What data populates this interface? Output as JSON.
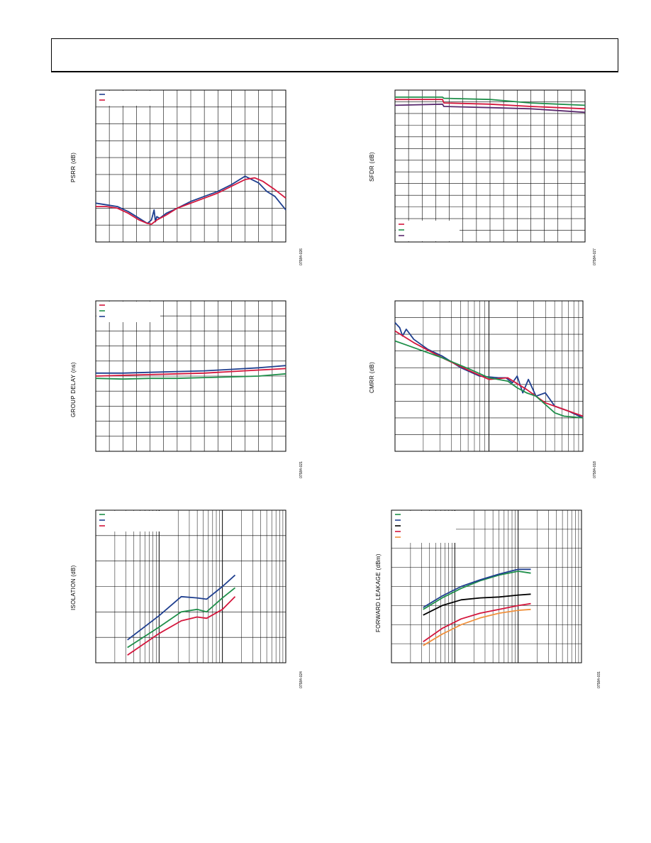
{
  "colors": {
    "blue": "#1f3f8f",
    "red": "#d4163c",
    "green": "#1f8f4a",
    "black": "#000000",
    "orange": "#f0903c",
    "purple": "#5a2a6e",
    "grid": "#000000"
  },
  "charts": {
    "psrr": {
      "ylabel": "PSRR (dB)",
      "fig_id": "07584-026",
      "chart_data": {
        "type": "line",
        "xlabel": "",
        "ylabel": "PSRR (dB)",
        "x_scale": "linear",
        "xlim": [
          0,
          14
        ],
        "ylim": [
          0,
          9
        ],
        "grid": true,
        "legend": {
          "placement": "top-left",
          "entries": 2
        },
        "series": [
          {
            "color": "blue",
            "x": [
              0,
              0.8,
              1.6,
              2.4,
              3.2,
              3.8,
              4.1,
              4.3,
              4.4,
              4.5,
              4.7,
              5.2,
              6.0,
              7.0,
              8.0,
              9.0,
              10.0,
              11.0,
              12.0,
              12.6,
              13.2,
              14.0
            ],
            "y": [
              2.3,
              2.2,
              2.1,
              1.8,
              1.4,
              1.1,
              1.3,
              1.9,
              1.2,
              1.5,
              1.4,
              1.7,
              2.0,
              2.4,
              2.7,
              3.0,
              3.4,
              3.9,
              3.5,
              3.0,
              2.7,
              1.9
            ]
          },
          {
            "color": "red",
            "x": [
              0,
              0.8,
              1.6,
              2.4,
              3.2,
              3.8,
              4.1,
              4.5,
              5.2,
              6.0,
              7.0,
              8.0,
              9.0,
              10.0,
              11.0,
              11.7,
              12.3,
              13.2,
              14.0
            ],
            "y": [
              2.1,
              2.1,
              2.0,
              1.7,
              1.3,
              1.1,
              1.05,
              1.3,
              1.6,
              2.0,
              2.3,
              2.6,
              2.9,
              3.3,
              3.7,
              3.8,
              3.6,
              3.1,
              2.6
            ]
          }
        ]
      }
    },
    "sfdr": {
      "ylabel": "SFDR (dB)",
      "fig_id": "07584-027",
      "chart_data": {
        "type": "line",
        "xlabel": "",
        "ylabel": "SFDR (dB)",
        "x_scale": "linear",
        "xlim": [
          0,
          14
        ],
        "ylim": [
          0,
          13
        ],
        "grid": true,
        "legend": {
          "placement": "bottom-left",
          "entries": 3
        },
        "series": [
          {
            "color": "red",
            "x": [
              0,
              3.5,
              3.6,
              7,
              10,
              14
            ],
            "y": [
              12.2,
              12.2,
              11.9,
              11.8,
              11.6,
              11.4
            ]
          },
          {
            "color": "green",
            "x": [
              0,
              3.5,
              3.6,
              7,
              10,
              14
            ],
            "y": [
              12.4,
              12.4,
              12.3,
              12.2,
              11.9,
              11.7
            ]
          },
          {
            "color": "purple",
            "x": [
              0,
              3.5,
              3.6,
              7,
              10,
              14
            ],
            "y": [
              11.7,
              11.8,
              11.6,
              11.5,
              11.4,
              11.1
            ]
          }
        ]
      }
    },
    "group_delay": {
      "ylabel": "GROUP DELAY (ns)",
      "fig_id": "07584-021",
      "chart_data": {
        "type": "line",
        "xlabel": "",
        "ylabel": "GROUP DELAY (ns)",
        "x_scale": "linear",
        "xlim": [
          0,
          14
        ],
        "ylim": [
          0,
          10
        ],
        "grid": true,
        "legend": {
          "placement": "top-left",
          "entries": 3
        },
        "series": [
          {
            "color": "red",
            "x": [
              0,
              2,
              4,
              6,
              8,
              10,
              12,
              14
            ],
            "y": [
              5.0,
              5.05,
              5.1,
              5.15,
              5.2,
              5.3,
              5.4,
              5.5
            ]
          },
          {
            "color": "green",
            "x": [
              0,
              2,
              4,
              6,
              8,
              10,
              12,
              14
            ],
            "y": [
              4.85,
              4.8,
              4.85,
              4.85,
              4.9,
              4.95,
              5.0,
              5.15
            ]
          },
          {
            "color": "blue",
            "x": [
              0,
              2,
              4,
              6,
              8,
              10,
              12,
              14
            ],
            "y": [
              5.2,
              5.2,
              5.25,
              5.3,
              5.35,
              5.45,
              5.55,
              5.7
            ]
          }
        ]
      }
    },
    "cmrr": {
      "ylabel": "CMRR (dB)",
      "fig_id": "07584-018",
      "chart_data": {
        "type": "line",
        "xlabel": "",
        "ylabel": "CMRR (dB)",
        "x_scale": "log",
        "xlim": [
          0,
          2
        ],
        "ylim": [
          0,
          9
        ],
        "grid": true,
        "series": [
          {
            "color": "blue",
            "x": [
              0,
              0.05,
              0.08,
              0.12,
              0.2,
              0.35,
              0.5,
              0.7,
              0.9,
              1.1,
              1.18,
              1.25,
              1.3,
              1.36,
              1.42,
              1.5,
              1.6,
              1.7,
              1.85,
              2.0
            ],
            "y": [
              7.7,
              7.4,
              6.9,
              7.3,
              6.7,
              6.1,
              5.7,
              5.0,
              4.5,
              4.4,
              4.4,
              4.1,
              4.5,
              3.5,
              4.3,
              3.3,
              3.5,
              2.7,
              2.4,
              2.0
            ]
          },
          {
            "color": "red",
            "x": [
              0,
              0.2,
              0.5,
              0.8,
              1.0,
              1.2,
              1.4,
              1.6,
              1.8,
              2.0
            ],
            "y": [
              7.2,
              6.5,
              5.6,
              4.8,
              4.3,
              4.4,
              3.7,
              2.9,
              2.5,
              2.1
            ]
          },
          {
            "color": "green",
            "x": [
              0,
              0.1,
              0.3,
              0.5,
              0.8,
              1.0,
              1.1,
              1.2,
              1.3,
              1.4,
              1.5,
              1.6,
              1.7,
              1.8,
              2.0
            ],
            "y": [
              6.6,
              6.4,
              6.0,
              5.6,
              4.9,
              4.4,
              4.3,
              4.2,
              3.8,
              3.5,
              3.3,
              2.8,
              2.3,
              2.1,
              2.0
            ]
          }
        ]
      }
    },
    "isolation": {
      "ylabel": "ISOLATION (dB)",
      "fig_id": "07584-024",
      "chart_data": {
        "type": "line",
        "xlabel": "",
        "ylabel": "ISOLATION (dB)",
        "x_scale": "log",
        "xlim": [
          0,
          3
        ],
        "ylim": [
          0,
          6
        ],
        "grid": true,
        "legend": {
          "placement": "top-left",
          "entries": 3
        },
        "series": [
          {
            "color": "green",
            "x": [
              0.5,
              1.0,
              1.35,
              1.6,
              1.75,
              2.0,
              2.2
            ],
            "y": [
              0.6,
              1.4,
              2.0,
              2.1,
              2.0,
              2.55,
              2.95
            ]
          },
          {
            "color": "blue",
            "x": [
              0.5,
              1.0,
              1.35,
              1.6,
              1.75,
              2.0,
              2.2
            ],
            "y": [
              0.9,
              1.85,
              2.6,
              2.55,
              2.5,
              3.0,
              3.45
            ]
          },
          {
            "color": "red",
            "x": [
              0.5,
              1.0,
              1.35,
              1.6,
              1.75,
              2.0,
              2.2
            ],
            "y": [
              0.3,
              1.15,
              1.65,
              1.8,
              1.75,
              2.1,
              2.6
            ]
          }
        ]
      }
    },
    "forward_leakage": {
      "ylabel": "FORWARD LEAKAGE (dBm)",
      "fig_id": "07584-031",
      "chart_data": {
        "type": "line",
        "xlabel": "",
        "ylabel": "FORWARD LEAKAGE (dBm)",
        "x_scale": "log",
        "xlim": [
          0,
          3
        ],
        "ylim": [
          0,
          8
        ],
        "grid": true,
        "legend": {
          "placement": "top-left",
          "entries": 5
        },
        "series": [
          {
            "color": "green",
            "x": [
              0.5,
              0.8,
              1.1,
              1.4,
              1.7,
              2.0,
              2.2
            ],
            "y": [
              2.8,
              3.4,
              3.9,
              4.3,
              4.6,
              4.8,
              4.7
            ]
          },
          {
            "color": "blue",
            "x": [
              0.5,
              0.8,
              1.1,
              1.4,
              1.7,
              2.0,
              2.2
            ],
            "y": [
              2.9,
              3.5,
              4.0,
              4.35,
              4.65,
              4.9,
              4.9
            ]
          },
          {
            "color": "black",
            "x": [
              0.5,
              0.8,
              1.1,
              1.4,
              1.7,
              2.0,
              2.2
            ],
            "y": [
              2.5,
              3.0,
              3.3,
              3.4,
              3.45,
              3.55,
              3.6
            ]
          },
          {
            "color": "red",
            "x": [
              0.5,
              0.8,
              1.1,
              1.4,
              1.7,
              2.0,
              2.2
            ],
            "y": [
              1.1,
              1.8,
              2.3,
              2.6,
              2.8,
              3.0,
              3.1
            ]
          },
          {
            "color": "orange",
            "x": [
              0.5,
              0.8,
              1.1,
              1.4,
              1.7,
              2.0,
              2.2
            ],
            "y": [
              0.9,
              1.5,
              2.0,
              2.35,
              2.6,
              2.75,
              2.8
            ]
          }
        ]
      }
    }
  }
}
